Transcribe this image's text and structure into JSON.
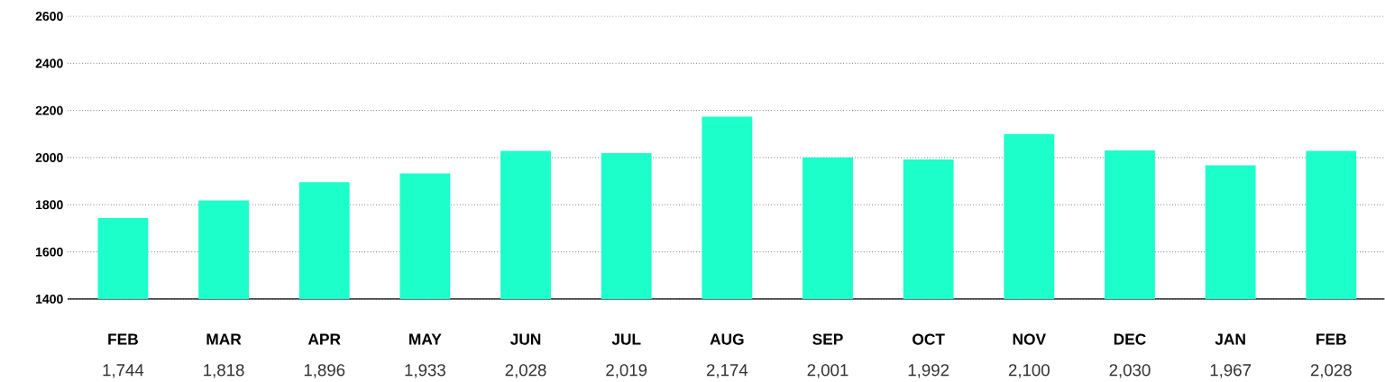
{
  "chart_data": {
    "type": "bar",
    "categories": [
      "FEB",
      "MAR",
      "APR",
      "MAY",
      "JUN",
      "JUL",
      "AUG",
      "SEP",
      "OCT",
      "NOV",
      "DEC",
      "JAN",
      "FEB"
    ],
    "values": [
      1744,
      1818,
      1896,
      1933,
      2028,
      2019,
      2174,
      2001,
      1992,
      2100,
      2030,
      1967,
      2028
    ],
    "value_labels": [
      "1,744",
      "1,818",
      "1,896",
      "1,933",
      "2,028",
      "2,019",
      "2,174",
      "2,001",
      "1,992",
      "2,100",
      "2,030",
      "1,967",
      "2,028"
    ],
    "color": "#1cffca",
    "ylim": [
      1400,
      2600
    ],
    "yticks": [
      1400,
      1600,
      1800,
      2000,
      2200,
      2400,
      2600
    ],
    "grid": "y"
  }
}
